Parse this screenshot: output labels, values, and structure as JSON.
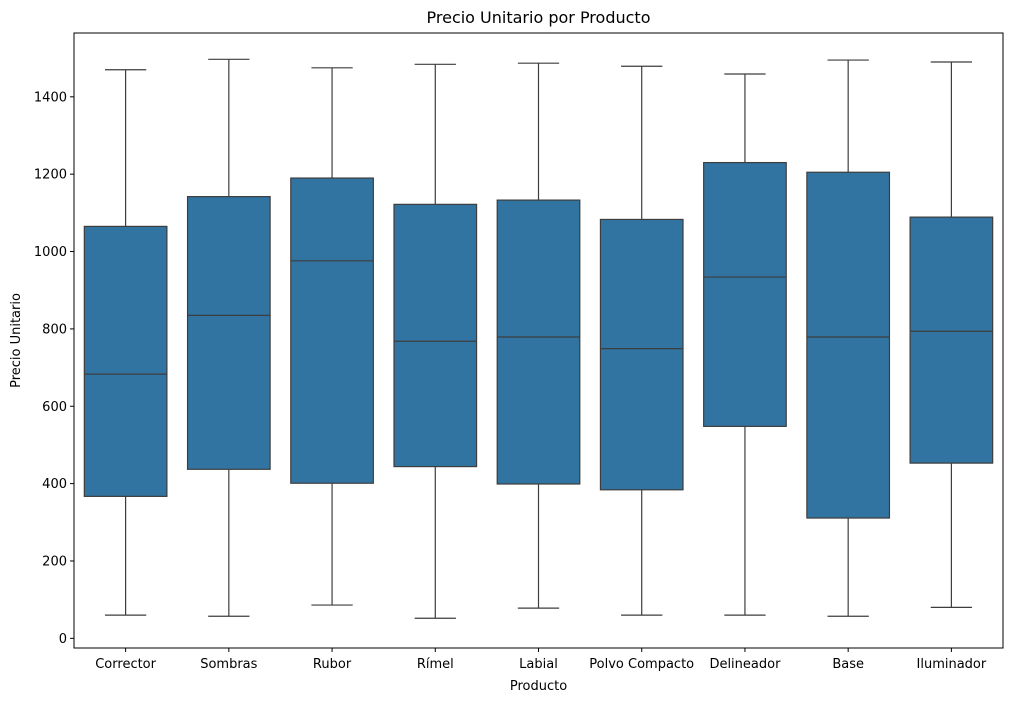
{
  "chart_data": {
    "type": "boxplot",
    "title": "Precio Unitario por Producto",
    "xlabel": "Producto",
    "ylabel": "Precio Unitario",
    "ylim": [
      -25,
      1565
    ],
    "yticks": [
      0,
      200,
      400,
      600,
      800,
      1000,
      1200,
      1400
    ],
    "grid": false,
    "box_color": "#3274a1",
    "line_color": "#3d3d3d",
    "categories": [
      "Corrector",
      "Sombras",
      "Rubor",
      "Rímel",
      "Labial",
      "Polvo Compacto",
      "Delineador",
      "Base",
      "Iluminador"
    ],
    "boxes": [
      {
        "category": "Corrector",
        "min": 60,
        "q1": 367,
        "median": 683,
        "q3": 1065,
        "max": 1470
      },
      {
        "category": "Sombras",
        "min": 57,
        "q1": 437,
        "median": 835,
        "q3": 1142,
        "max": 1497
      },
      {
        "category": "Rubor",
        "min": 86,
        "q1": 401,
        "median": 976,
        "q3": 1190,
        "max": 1475
      },
      {
        "category": "Rímel",
        "min": 52,
        "q1": 444,
        "median": 768,
        "q3": 1122,
        "max": 1484
      },
      {
        "category": "Labial",
        "min": 78,
        "q1": 399,
        "median": 779,
        "q3": 1133,
        "max": 1487
      },
      {
        "category": "Polvo Compacto",
        "min": 60,
        "q1": 384,
        "median": 749,
        "q3": 1083,
        "max": 1479
      },
      {
        "category": "Delineador",
        "min": 60,
        "q1": 548,
        "median": 934,
        "q3": 1230,
        "max": 1459
      },
      {
        "category": "Base",
        "min": 57,
        "q1": 311,
        "median": 779,
        "q3": 1205,
        "max": 1495
      },
      {
        "category": "Iluminador",
        "min": 80,
        "q1": 453,
        "median": 794,
        "q3": 1089,
        "max": 1490
      }
    ]
  }
}
